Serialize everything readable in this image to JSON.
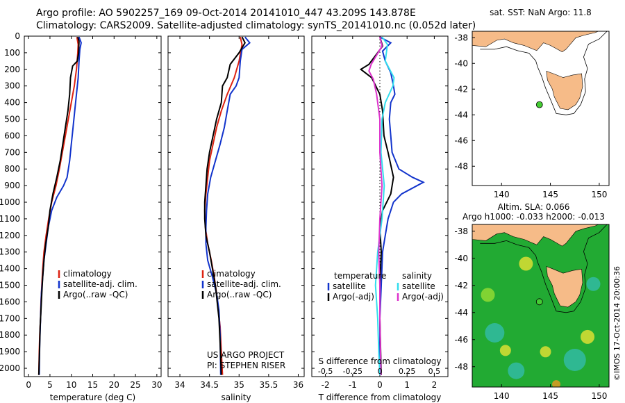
{
  "title": {
    "line1": "Argo profile: AO 5902257_169 09-Oct-2014 20141010_447 43.209S 143.878E",
    "line2": "Climatology: CARS2009. Satellite-adjusted climatology: synTS_20141010.nc (0.052d later)"
  },
  "colors": {
    "climatology": "#dd2211",
    "satellite": "#1133cc",
    "argo": "#000000",
    "sat_salinity": "#33ddee",
    "argo_salinity": "#dd33cc",
    "land": "#f6bb88",
    "sla_base": "#22aa33",
    "marker": "#44cc33"
  },
  "chart_data": [
    {
      "type": "line",
      "name": "temperature-panel",
      "xlabel": "temperature (deg C)",
      "xlim": [
        -1,
        31
      ],
      "xticks": [
        0,
        5,
        10,
        15,
        20,
        25,
        30
      ],
      "ylim": [
        0,
        2050
      ],
      "yticks": [
        0,
        100,
        200,
        300,
        400,
        500,
        600,
        700,
        800,
        900,
        1000,
        1100,
        1200,
        1300,
        1400,
        1500,
        1600,
        1700,
        1800,
        1900,
        2000
      ],
      "legend": [
        "climatology",
        "satellite-adj. clim.",
        "Argo(..raw -QC)"
      ],
      "series": [
        {
          "name": "climatology",
          "points": [
            [
              11.3,
              5
            ],
            [
              11.6,
              50
            ],
            [
              11.5,
              100
            ],
            [
              11.2,
              200
            ],
            [
              10.7,
              300
            ],
            [
              10.0,
              400
            ],
            [
              9.3,
              500
            ],
            [
              8.6,
              600
            ],
            [
              7.9,
              700
            ],
            [
              7.2,
              800
            ],
            [
              6.4,
              900
            ],
            [
              5.4,
              1000
            ],
            [
              4.7,
              1100
            ],
            [
              4.1,
              1200
            ],
            [
              3.6,
              1300
            ],
            [
              3.3,
              1400
            ],
            [
              3.1,
              1500
            ],
            [
              2.9,
              1600
            ],
            [
              2.8,
              1700
            ],
            [
              2.6,
              1800
            ],
            [
              2.5,
              1900
            ],
            [
              2.4,
              2040
            ]
          ]
        },
        {
          "name": "satellite-adj. clim.",
          "points": [
            [
              11.8,
              5
            ],
            [
              12.3,
              40
            ],
            [
              12.0,
              80
            ],
            [
              11.8,
              150
            ],
            [
              11.6,
              250
            ],
            [
              11.2,
              350
            ],
            [
              10.8,
              450
            ],
            [
              10.4,
              550
            ],
            [
              10.0,
              650
            ],
            [
              9.6,
              750
            ],
            [
              9.0,
              850
            ],
            [
              8.2,
              900
            ],
            [
              6.6,
              970
            ],
            [
              5.4,
              1050
            ],
            [
              4.6,
              1150
            ],
            [
              4.1,
              1250
            ],
            [
              3.6,
              1350
            ],
            [
              3.3,
              1450
            ],
            [
              3.0,
              1550
            ],
            [
              2.8,
              1700
            ],
            [
              2.6,
              1850
            ],
            [
              2.5,
              2040
            ]
          ]
        },
        {
          "name": "Argo(..raw -QC)",
          "points": [
            [
              11.5,
              5
            ],
            [
              11.8,
              30
            ],
            [
              11.7,
              100
            ],
            [
              11.4,
              150
            ],
            [
              10.3,
              180
            ],
            [
              9.8,
              250
            ],
            [
              9.6,
              350
            ],
            [
              9.2,
              450
            ],
            [
              8.6,
              550
            ],
            [
              8.0,
              650
            ],
            [
              7.4,
              750
            ],
            [
              6.6,
              850
            ],
            [
              5.7,
              950
            ],
            [
              5.0,
              1050
            ],
            [
              4.6,
              1150
            ],
            [
              4.0,
              1250
            ],
            [
              3.6,
              1350
            ],
            [
              3.3,
              1450
            ],
            [
              3.1,
              1550
            ],
            [
              2.9,
              1650
            ],
            [
              2.7,
              1750
            ],
            [
              2.6,
              1850
            ],
            [
              2.4,
              2040
            ]
          ]
        }
      ]
    },
    {
      "type": "line",
      "name": "salinity-panel",
      "xlabel": "salinity",
      "xlim": [
        33.8,
        36.1
      ],
      "xticks": [
        34,
        34.5,
        35,
        35.5,
        36
      ],
      "ylim": [
        0,
        2050
      ],
      "legend": [
        "climatology",
        "satellite-adj. clim.",
        "Argo(..raw -QC)"
      ],
      "annotation": [
        "US ARGO PROJECT",
        "PI: STEPHEN RISER"
      ],
      "series": [
        {
          "name": "climatology",
          "points": [
            [
              35.02,
              5
            ],
            [
              35.05,
              50
            ],
            [
              35.0,
              150
            ],
            [
              34.92,
              250
            ],
            [
              34.8,
              350
            ],
            [
              34.7,
              450
            ],
            [
              34.62,
              550
            ],
            [
              34.56,
              650
            ],
            [
              34.5,
              750
            ],
            [
              34.47,
              850
            ],
            [
              34.44,
              950
            ],
            [
              34.42,
              1050
            ],
            [
              34.43,
              1150
            ],
            [
              34.47,
              1250
            ],
            [
              34.53,
              1350
            ],
            [
              34.58,
              1450
            ],
            [
              34.62,
              1550
            ],
            [
              34.65,
              1650
            ],
            [
              34.68,
              1750
            ],
            [
              34.7,
              1900
            ],
            [
              34.72,
              2040
            ]
          ]
        },
        {
          "name": "satellite-adj. clim.",
          "points": [
            [
              35.1,
              5
            ],
            [
              35.18,
              40
            ],
            [
              35.05,
              80
            ],
            [
              35.02,
              150
            ],
            [
              35.0,
              250
            ],
            [
              34.95,
              300
            ],
            [
              34.85,
              350
            ],
            [
              34.8,
              450
            ],
            [
              34.75,
              550
            ],
            [
              34.68,
              650
            ],
            [
              34.6,
              750
            ],
            [
              34.52,
              850
            ],
            [
              34.47,
              950
            ],
            [
              34.45,
              1050
            ],
            [
              34.44,
              1150
            ],
            [
              34.44,
              1250
            ],
            [
              34.47,
              1350
            ],
            [
              34.55,
              1450
            ],
            [
              34.62,
              1550
            ],
            [
              34.66,
              1650
            ],
            [
              34.68,
              1800
            ],
            [
              34.69,
              2040
            ]
          ]
        },
        {
          "name": "Argo(..raw -QC)",
          "points": [
            [
              35.05,
              5
            ],
            [
              35.1,
              40
            ],
            [
              35.0,
              100
            ],
            [
              34.85,
              170
            ],
            [
              34.8,
              250
            ],
            [
              34.72,
              300
            ],
            [
              34.7,
              400
            ],
            [
              34.62,
              500
            ],
            [
              34.56,
              600
            ],
            [
              34.5,
              700
            ],
            [
              34.46,
              800
            ],
            [
              34.44,
              900
            ],
            [
              34.42,
              1000
            ],
            [
              34.42,
              1100
            ],
            [
              34.44,
              1200
            ],
            [
              34.5,
              1300
            ],
            [
              34.55,
              1400
            ],
            [
              34.6,
              1500
            ],
            [
              34.63,
              1600
            ],
            [
              34.66,
              1700
            ],
            [
              34.68,
              1850
            ],
            [
              34.7,
              2040
            ]
          ]
        }
      ]
    },
    {
      "type": "line",
      "name": "difference-panel",
      "xlabel": "T difference from climatology",
      "xlim": [
        -2.5,
        2.5
      ],
      "xticks": [
        -2,
        -1,
        0,
        1,
        2
      ],
      "top_axis_label": "S difference from climatology",
      "top_ticks": [
        "-0.5",
        "-0.25",
        "0",
        "0.25",
        "0.5"
      ],
      "top_tick_values": [
        -0.5,
        -0.25,
        0,
        0.25,
        0.5
      ],
      "ylim": [
        0,
        2050
      ],
      "legend_headers": [
        "temperature",
        "salinity"
      ],
      "legend": [
        [
          "satellite",
          "Argo(-adj)"
        ],
        [
          "satellite",
          "Argo(-adj)"
        ]
      ],
      "series": [
        {
          "name": "satellite",
          "group": "temperature",
          "points": [
            [
              0.0,
              5
            ],
            [
              0.4,
              40
            ],
            [
              0.1,
              90
            ],
            [
              0.2,
              150
            ],
            [
              0.4,
              220
            ],
            [
              0.5,
              300
            ],
            [
              0.55,
              350
            ],
            [
              0.4,
              400
            ],
            [
              0.35,
              500
            ],
            [
              0.4,
              600
            ],
            [
              0.45,
              700
            ],
            [
              0.7,
              800
            ],
            [
              1.2,
              850
            ],
            [
              1.6,
              880
            ],
            [
              0.8,
              950
            ],
            [
              0.5,
              1000
            ],
            [
              0.3,
              1100
            ],
            [
              0.2,
              1200
            ],
            [
              0.1,
              1300
            ],
            [
              0.05,
              1500
            ],
            [
              0.0,
              1700
            ],
            [
              0.0,
              2040
            ]
          ]
        },
        {
          "name": "Argo(-adj)",
          "group": "temperature",
          "points": [
            [
              0.0,
              5
            ],
            [
              0.1,
              60
            ],
            [
              -0.4,
              170
            ],
            [
              -0.7,
              200
            ],
            [
              -0.3,
              250
            ],
            [
              0.0,
              350
            ],
            [
              0.1,
              450
            ],
            [
              0.15,
              600
            ],
            [
              0.3,
              700
            ],
            [
              0.5,
              850
            ],
            [
              0.4,
              950
            ],
            [
              0.1,
              1050
            ],
            [
              0.0,
              1150
            ],
            [
              0.05,
              1300
            ],
            [
              0.0,
              1500
            ],
            [
              0.0,
              1700
            ],
            [
              0.05,
              2040
            ]
          ]
        },
        {
          "name": "satellite",
          "group": "salinity",
          "points": [
            [
              0.02,
              5
            ],
            [
              0.07,
              50
            ],
            [
              0.05,
              150
            ],
            [
              0.13,
              250
            ],
            [
              0.12,
              300
            ],
            [
              0.05,
              400
            ],
            [
              0.02,
              500
            ],
            [
              0.01,
              700
            ],
            [
              0.04,
              900
            ],
            [
              0.02,
              1100
            ],
            [
              -0.02,
              1300
            ],
            [
              -0.04,
              1500
            ],
            [
              -0.02,
              1700
            ],
            [
              -0.01,
              1900
            ],
            [
              0.0,
              2040
            ]
          ]
        },
        {
          "name": "Argo(-adj)",
          "group": "salinity",
          "points": [
            [
              0.0,
              5
            ],
            [
              0.02,
              60
            ],
            [
              -0.08,
              170
            ],
            [
              -0.1,
              210
            ],
            [
              -0.06,
              260
            ],
            [
              -0.03,
              350
            ],
            [
              0.0,
              500
            ],
            [
              0.0,
              700
            ],
            [
              0.02,
              900
            ],
            [
              0.0,
              1100
            ],
            [
              -0.01,
              1300
            ],
            [
              0.0,
              1500
            ],
            [
              0.0,
              1700
            ],
            [
              0.01,
              2040
            ]
          ]
        }
      ]
    },
    {
      "type": "map",
      "name": "sst-map",
      "title": "sat. SST: NaN Argo: 11.8",
      "xlim": [
        137,
        151
      ],
      "ylim": [
        -49.5,
        -37.5
      ],
      "xticks": [
        140,
        145,
        150
      ],
      "yticks": [
        -38,
        -40,
        -42,
        -44,
        -46,
        -48
      ],
      "marker": {
        "lon": 143.878,
        "lat": -43.209
      }
    },
    {
      "type": "map",
      "name": "sla-map",
      "title": [
        "Altim. SLA: 0.066",
        "Argo h1000: -0.033 h2000: -0.013"
      ],
      "xlim": [
        137,
        151
      ],
      "ylim": [
        -49.5,
        -37.5
      ],
      "xticks": [
        140,
        145,
        150
      ],
      "yticks": [
        -38,
        -40,
        -42,
        -44,
        -46,
        -48
      ],
      "marker": {
        "lon": 143.878,
        "lat": -43.209
      }
    }
  ],
  "credit": "©IMOS 17-Oct-2014 20:00:36"
}
